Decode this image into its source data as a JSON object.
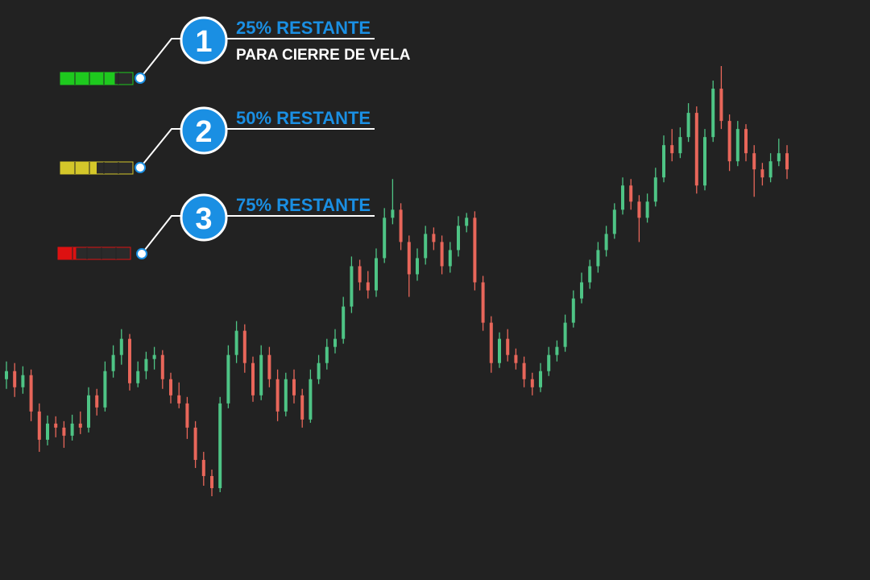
{
  "chart_data": {
    "type": "candlestick",
    "up_color": "#4ec485",
    "down_color": "#e8665a",
    "candles": [
      [
        250,
        272,
        238,
        260
      ],
      [
        260,
        270,
        228,
        240
      ],
      [
        240,
        266,
        232,
        255
      ],
      [
        255,
        262,
        198,
        210
      ],
      [
        210,
        220,
        160,
        175
      ],
      [
        175,
        205,
        168,
        195
      ],
      [
        195,
        204,
        178,
        190
      ],
      [
        190,
        198,
        165,
        180
      ],
      [
        180,
        206,
        174,
        195
      ],
      [
        195,
        210,
        182,
        190
      ],
      [
        190,
        240,
        184,
        230
      ],
      [
        230,
        238,
        205,
        215
      ],
      [
        215,
        272,
        210,
        260
      ],
      [
        260,
        292,
        252,
        280
      ],
      [
        280,
        312,
        268,
        300
      ],
      [
        300,
        306,
        236,
        245
      ],
      [
        245,
        272,
        240,
        260
      ],
      [
        260,
        284,
        250,
        275
      ],
      [
        275,
        290,
        262,
        280
      ],
      [
        280,
        286,
        238,
        250
      ],
      [
        250,
        258,
        220,
        230
      ],
      [
        230,
        246,
        214,
        220
      ],
      [
        220,
        228,
        176,
        190
      ],
      [
        190,
        198,
        140,
        150
      ],
      [
        150,
        160,
        118,
        130
      ],
      [
        130,
        138,
        105,
        115
      ],
      [
        115,
        228,
        110,
        220
      ],
      [
        220,
        292,
        214,
        280
      ],
      [
        280,
        322,
        270,
        310
      ],
      [
        310,
        318,
        258,
        270
      ],
      [
        270,
        278,
        222,
        230
      ],
      [
        230,
        292,
        224,
        280
      ],
      [
        280,
        290,
        240,
        250
      ],
      [
        250,
        262,
        198,
        210
      ],
      [
        210,
        258,
        204,
        250
      ],
      [
        250,
        262,
        220,
        230
      ],
      [
        230,
        238,
        190,
        200
      ],
      [
        200,
        262,
        196,
        250
      ],
      [
        250,
        280,
        244,
        270
      ],
      [
        270,
        300,
        262,
        290
      ],
      [
        290,
        312,
        282,
        300
      ],
      [
        300,
        352,
        294,
        340
      ],
      [
        340,
        402,
        332,
        390
      ],
      [
        390,
        398,
        360,
        370
      ],
      [
        370,
        384,
        350,
        360
      ],
      [
        360,
        412,
        352,
        400
      ],
      [
        400,
        462,
        394,
        450
      ],
      [
        450,
        498,
        442,
        460
      ],
      [
        460,
        468,
        410,
        420
      ],
      [
        420,
        428,
        352,
        380
      ],
      [
        380,
        412,
        372,
        400
      ],
      [
        400,
        440,
        392,
        430
      ],
      [
        430,
        438,
        410,
        420
      ],
      [
        420,
        428,
        380,
        390
      ],
      [
        390,
        420,
        382,
        410
      ],
      [
        410,
        452,
        402,
        440
      ],
      [
        440,
        456,
        432,
        450
      ],
      [
        450,
        458,
        360,
        370
      ],
      [
        370,
        378,
        310,
        320
      ],
      [
        320,
        328,
        258,
        270
      ],
      [
        270,
        308,
        264,
        300
      ],
      [
        300,
        312,
        272,
        280
      ],
      [
        280,
        288,
        262,
        270
      ],
      [
        270,
        278,
        240,
        250
      ],
      [
        250,
        258,
        230,
        240
      ],
      [
        240,
        270,
        234,
        260
      ],
      [
        260,
        290,
        254,
        280
      ],
      [
        280,
        298,
        272,
        290
      ],
      [
        290,
        330,
        284,
        320
      ],
      [
        320,
        360,
        314,
        350
      ],
      [
        350,
        382,
        344,
        370
      ],
      [
        370,
        398,
        362,
        390
      ],
      [
        390,
        420,
        382,
        410
      ],
      [
        410,
        440,
        402,
        430
      ],
      [
        430,
        468,
        424,
        460
      ],
      [
        460,
        500,
        454,
        490
      ],
      [
        490,
        498,
        460,
        470
      ],
      [
        470,
        478,
        420,
        450
      ],
      [
        450,
        480,
        444,
        470
      ],
      [
        470,
        512,
        464,
        500
      ],
      [
        500,
        552,
        494,
        540
      ],
      [
        540,
        560,
        520,
        530
      ],
      [
        530,
        562,
        524,
        550
      ],
      [
        550,
        592,
        544,
        580
      ],
      [
        580,
        588,
        480,
        490
      ],
      [
        490,
        560,
        484,
        550
      ],
      [
        550,
        620,
        544,
        610
      ],
      [
        610,
        638,
        560,
        570
      ],
      [
        570,
        578,
        508,
        520
      ],
      [
        520,
        570,
        514,
        560
      ],
      [
        560,
        566,
        520,
        530
      ],
      [
        530,
        540,
        476,
        510
      ],
      [
        510,
        518,
        490,
        500
      ],
      [
        500,
        530,
        494,
        520
      ],
      [
        520,
        548,
        514,
        530
      ],
      [
        530,
        540,
        498,
        510
      ]
    ]
  },
  "indicators": [
    {
      "number": "1",
      "value": 25,
      "value_label": "25% RESTANTE",
      "sublabel": "PARA CIERRE DE VELA",
      "color": "#1ec91e"
    },
    {
      "number": "2",
      "value": 50,
      "value_label": "50% RESTANTE",
      "color": "#d4c72a"
    },
    {
      "number": "3",
      "value": 75,
      "value_label": "75% RESTANTE",
      "color": "#dd1111"
    }
  ]
}
